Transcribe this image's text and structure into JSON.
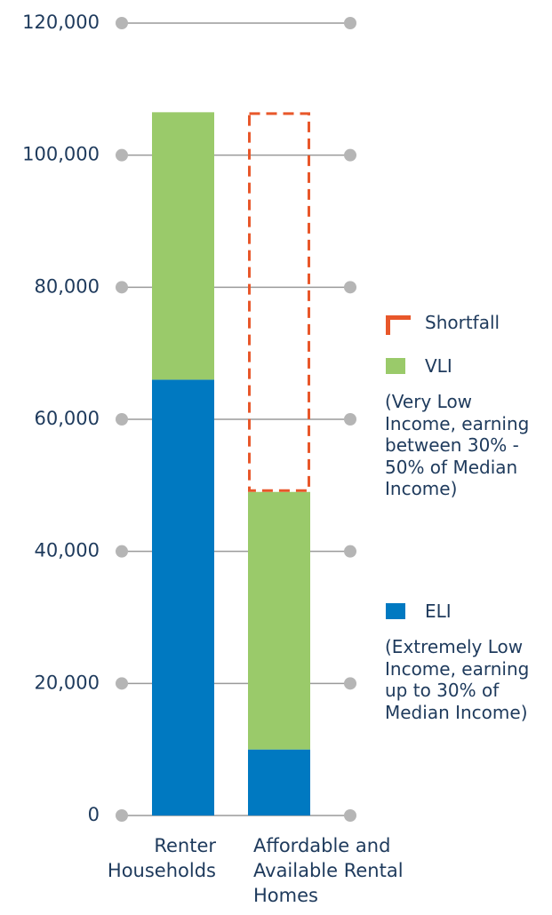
{
  "chart_data": {
    "type": "bar",
    "stacked": true,
    "categories": [
      "Renter Households",
      "Affordable and Available Rental Homes"
    ],
    "series": [
      {
        "name": "ELI",
        "description": "(Extremely Low Income, earning up to 30% of Median Income)",
        "color": "#0079c1",
        "values": [
          66000,
          10000
        ]
      },
      {
        "name": "VLI",
        "description": "(Very Low Income, earning between 30% - 50% of Median Income)",
        "color": "#9aca6a",
        "values": [
          40500,
          39000
        ]
      },
      {
        "name": "Shortfall",
        "color": "#e8572a",
        "dashed": true,
        "values": [
          null,
          57500
        ]
      }
    ],
    "ylim": [
      0,
      120000
    ],
    "yticks": [
      0,
      {
        "value": 20000,
        "label": "20,000"
      },
      {
        "value": 40000,
        "label": "40,000"
      },
      {
        "value": 60000,
        "label": "60,000"
      },
      {
        "value": 80000,
        "label": "80,000"
      },
      {
        "value": 100000,
        "label": "100,000"
      },
      {
        "value": 120000,
        "label": "120,000"
      }
    ],
    "grid": true
  }
}
